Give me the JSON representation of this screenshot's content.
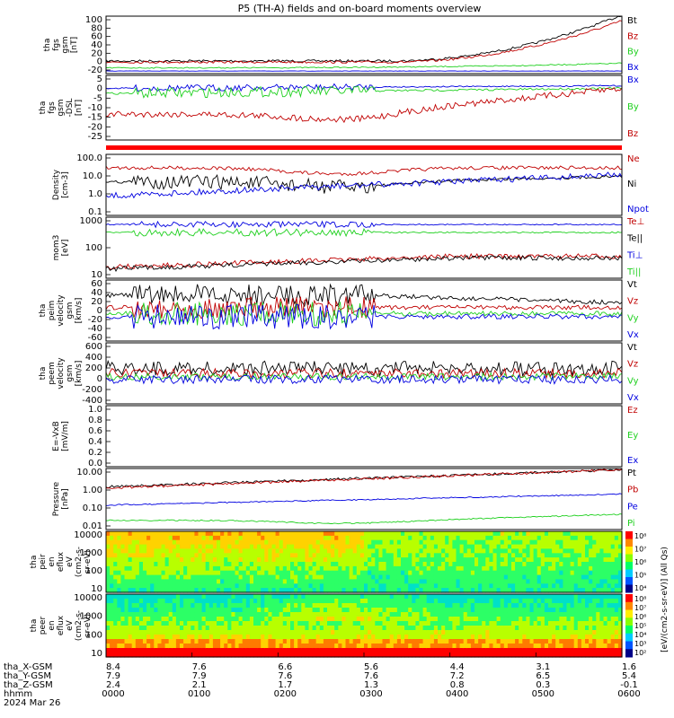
{
  "title": "P5 (TH-A) fields and on-board moments overview",
  "colors": {
    "black": "#000000",
    "red": "#c00000",
    "darkred": "#8b0000",
    "green": "#1fd01f",
    "blue": "#0000e0",
    "bar": "#ff0000"
  },
  "chart_data": [
    {
      "id": "fgs1",
      "type": "line",
      "ylabel": [
        "tha",
        "fgs",
        "gsm",
        "[nT]"
      ],
      "yticks": [
        "100",
        "80",
        "60",
        "40",
        "20",
        "0",
        "-20"
      ],
      "series": [
        {
          "name": "Bt",
          "color": "#000000"
        },
        {
          "name": "Bz",
          "color": "#c00000"
        },
        {
          "name": "By",
          "color": "#1fd01f"
        },
        {
          "name": "Bx",
          "color": "#0000e0"
        }
      ]
    },
    {
      "id": "fgs2",
      "type": "line",
      "ylabel": [
        "tha",
        "fgs",
        "gsm",
        "-DSL",
        "[nT]"
      ],
      "yticks": [
        "5",
        "0",
        "-5",
        "-10",
        "-15",
        "-20",
        "-25"
      ],
      "series": [
        {
          "name": "Bx",
          "color": "#0000e0"
        },
        {
          "name": "By",
          "color": "#1fd01f"
        },
        {
          "name": "Bz",
          "color": "#c00000"
        }
      ]
    },
    {
      "id": "density",
      "type": "line",
      "ylabel": [
        "Density",
        "[cm-3]"
      ],
      "yticks": [
        "100.0",
        "10.0",
        "1.0",
        "0.1"
      ],
      "series": [
        {
          "name": "Ne",
          "color": "#c00000"
        },
        {
          "name": "Ni",
          "color": "#000000"
        },
        {
          "name": "Npot",
          "color": "#0000e0"
        }
      ]
    },
    {
      "id": "temp",
      "type": "line",
      "ylabel": [
        "mom3",
        "[eV]"
      ],
      "yticks": [
        "1000",
        "100",
        "10"
      ],
      "series": [
        {
          "name": "Te⊥",
          "color": "#c00000"
        },
        {
          "name": "Te||",
          "color": "#000000"
        },
        {
          "name": "Ti⊥",
          "color": "#0000e0"
        },
        {
          "name": "Ti||",
          "color": "#1fd01f"
        }
      ]
    },
    {
      "id": "peim",
      "type": "line",
      "ylabel": [
        "tha",
        "peim",
        "velocity",
        "gsm",
        "[km/s]"
      ],
      "yticks": [
        "60",
        "40",
        "20",
        "0",
        "-20",
        "-40",
        "-60"
      ],
      "series": [
        {
          "name": "Vt",
          "color": "#000000"
        },
        {
          "name": "Vz",
          "color": "#c00000"
        },
        {
          "name": "Vy",
          "color": "#1fd01f"
        },
        {
          "name": "Vx",
          "color": "#0000e0"
        }
      ]
    },
    {
      "id": "peem",
      "type": "line",
      "ylabel": [
        "tha",
        "peem",
        "velocity",
        "gsm",
        "[km/s]"
      ],
      "yticks": [
        "600",
        "400",
        "200",
        "0",
        "-200",
        "-400"
      ],
      "series": [
        {
          "name": "Vt",
          "color": "#000000"
        },
        {
          "name": "Vz",
          "color": "#c00000"
        },
        {
          "name": "Vy",
          "color": "#1fd01f"
        },
        {
          "name": "Vx",
          "color": "#0000e0"
        }
      ]
    },
    {
      "id": "efield",
      "type": "line",
      "ylabel": [
        "E=-VxB",
        "[mV/m]"
      ],
      "yticks": [
        "1.0",
        "0.8",
        "0.6",
        "0.4",
        "0.2",
        "0.0"
      ],
      "series": [
        {
          "name": "Ez",
          "color": "#c00000"
        },
        {
          "name": "Ey",
          "color": "#1fd01f"
        },
        {
          "name": "Ex",
          "color": "#0000e0"
        }
      ]
    },
    {
      "id": "pressure",
      "type": "line",
      "ylabel": [
        "Pressure",
        "[nPa]"
      ],
      "yticks": [
        "10.00",
        "1.00",
        "0.10",
        "0.01"
      ],
      "series": [
        {
          "name": "Pt",
          "color": "#000000"
        },
        {
          "name": "Pb",
          "color": "#c00000"
        },
        {
          "name": "Pe",
          "color": "#0000e0"
        },
        {
          "name": "Pi",
          "color": "#1fd01f"
        }
      ]
    },
    {
      "id": "peir",
      "type": "heatmap",
      "ylabel": [
        "tha",
        "peir",
        "en",
        "eflux",
        "eV",
        "(cm2-s-",
        "sr-eV)"
      ],
      "yticks": [
        "10000",
        "1000",
        "100",
        "10"
      ],
      "colorbar": [
        "10⁸",
        "10⁷",
        "10⁶",
        "10⁵",
        "10⁴"
      ],
      "cbar_label": "[eV/(cm2-s-sr-eV)] (All Qs)"
    },
    {
      "id": "peer",
      "type": "heatmap",
      "ylabel": [
        "tha",
        "peer",
        "en",
        "eflux",
        "eV",
        "(cm2-s-",
        "sr-eV)"
      ],
      "yticks": [
        "10000",
        "1000",
        "100",
        "10"
      ],
      "colorbar": [
        "10⁸",
        "10⁷",
        "10⁶",
        "10⁵",
        "10⁴",
        "10³",
        "10²"
      ]
    }
  ],
  "xaxis": {
    "rows": [
      {
        "label": "tha_X-GSM",
        "values": [
          "8.4",
          "7.6",
          "6.6",
          "5.6",
          "4.4",
          "3.1",
          "1.6"
        ]
      },
      {
        "label": "tha_Y-GSM",
        "values": [
          "7.9",
          "7.9",
          "7.6",
          "7.6",
          "7.2",
          "6.5",
          "5.4"
        ]
      },
      {
        "label": "tha_Z-GSM",
        "values": [
          "2.4",
          "2.1",
          "1.7",
          "1.3",
          "0.8",
          "0.3",
          "-0.1"
        ]
      },
      {
        "label": "hhmm",
        "values": [
          "0000",
          "0100",
          "0200",
          "0300",
          "0400",
          "0500",
          "0600"
        ]
      }
    ],
    "date": "2024 Mar 26"
  }
}
